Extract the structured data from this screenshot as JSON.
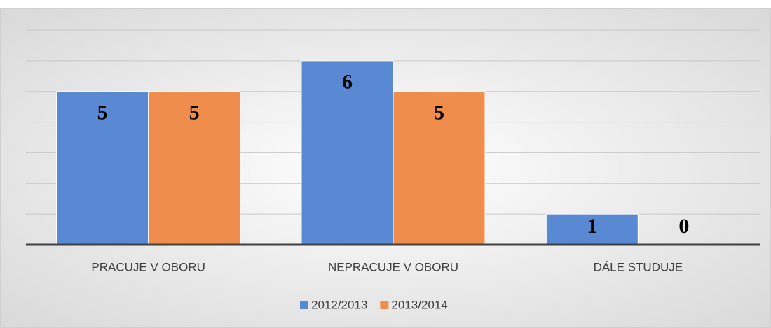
{
  "chart_data": {
    "type": "bar",
    "categories": [
      "PRACUJE V OBORU",
      "NEPRACUJE V OBORU",
      "DÁLE STUDUJE"
    ],
    "series": [
      {
        "name": "2012/2013",
        "color": "#5a89d4",
        "values": [
          5,
          6,
          1
        ]
      },
      {
        "name": "2013/2014",
        "color": "#ef8e4c",
        "values": [
          5,
          5,
          0
        ]
      }
    ],
    "ylim": [
      0,
      7
    ],
    "yticks": [
      0,
      1,
      2,
      3,
      4,
      5,
      6,
      7
    ],
    "grid": true,
    "legend": "bottom"
  }
}
